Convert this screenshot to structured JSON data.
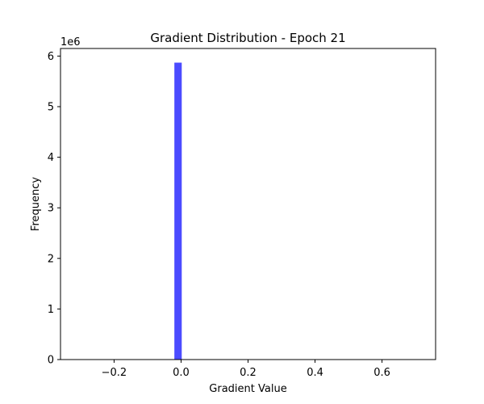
{
  "chart_data": {
    "type": "bar",
    "title": "Gradient Distribution - Epoch 21",
    "xlabel": "Gradient Value",
    "ylabel": "Frequency",
    "y_multiplier_label": "1e6",
    "xlim": [
      -0.36,
      0.76
    ],
    "ylim": [
      0,
      6.15
    ],
    "x_ticks": [
      -0.2,
      0.0,
      0.2,
      0.4,
      0.6
    ],
    "x_tick_labels": [
      "−0.2",
      "0.0",
      "0.2",
      "0.4",
      "0.6"
    ],
    "y_ticks": [
      0,
      1,
      2,
      3,
      4,
      5,
      6
    ],
    "y_tick_labels": [
      "0",
      "1",
      "2",
      "3",
      "4",
      "5",
      "6"
    ],
    "bars": [
      {
        "x_start": -0.02,
        "x_end": 0.002,
        "value": 5.87
      }
    ],
    "bar_color": "#4b4bff",
    "grid": false,
    "legend": "none"
  }
}
